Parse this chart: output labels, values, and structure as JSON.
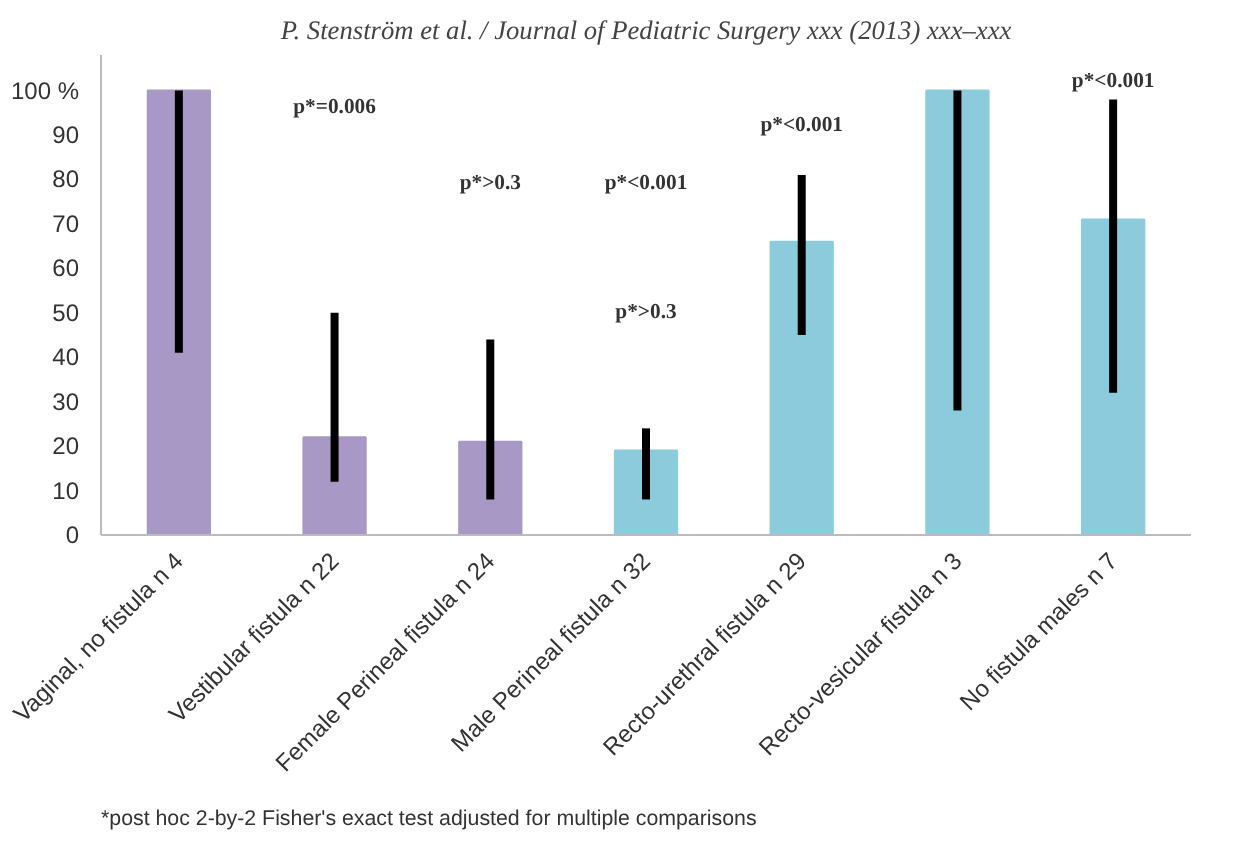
{
  "chart_data": {
    "type": "bar",
    "title": "P. Stenström et al. / Journal of Pediatric Surgery xxx (2013) xxx–xxx",
    "categories": [
      "Vaginal, no fistula n 4",
      "Vestibular fistula n 22",
      "Female Perineal fistula n 24",
      "Male Perineal fistula n 32",
      "Recto-urethral fistula n 29",
      "Recto-vesicular fistula n 3",
      "No fistula males n 7"
    ],
    "values": [
      100,
      22,
      21,
      19,
      66,
      100,
      71
    ],
    "colors": [
      "#a898c6",
      "#a898c6",
      "#a898c6",
      "#8ccbdc",
      "#8ccbdc",
      "#8ccbdc",
      "#8ccbdc"
    ],
    "errors": [
      [
        41,
        100
      ],
      [
        12,
        50
      ],
      [
        8,
        44
      ],
      [
        8,
        24
      ],
      [
        45,
        81
      ],
      [
        28,
        100
      ],
      [
        32,
        98
      ]
    ],
    "ylim": [
      0,
      108
    ],
    "yticks": [
      0,
      10,
      20,
      30,
      40,
      50,
      60,
      70,
      80,
      90,
      {
        "value": 100,
        "label": "100 %"
      }
    ],
    "grid": false,
    "annotations": [
      "p*=0.006",
      "p*>0.3",
      "p*>0.3",
      "p*<0.001",
      "p*<0.001",
      "p*<0.001",
      "*post hoc 2-by-2 Fisher's exact test adjusted for multiple  comparisons"
    ]
  }
}
